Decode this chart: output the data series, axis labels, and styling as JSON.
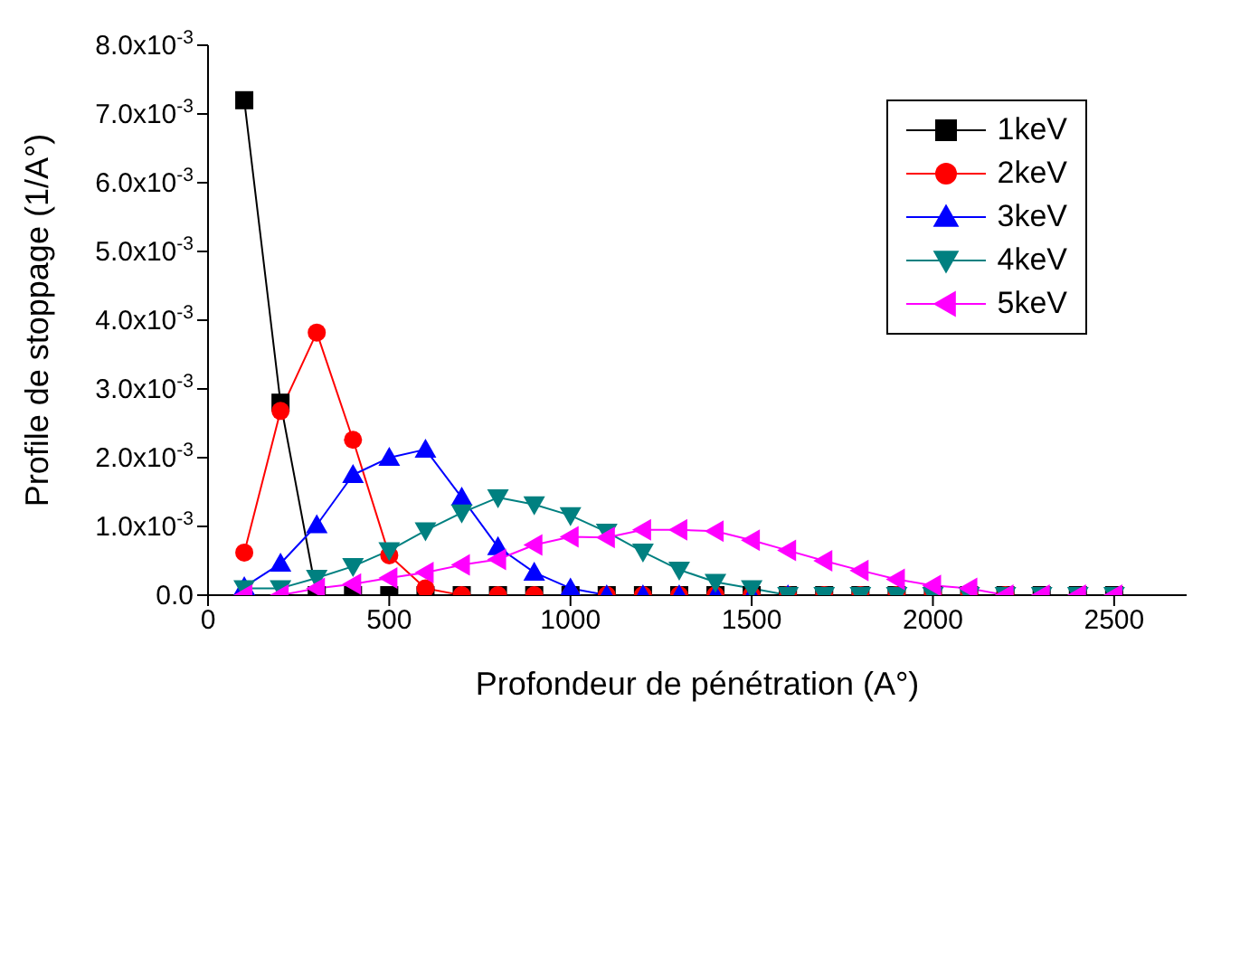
{
  "chart_data": {
    "type": "line",
    "xlabel": "Profondeur de pénétration (A°)",
    "ylabel": "Profile de stoppage (1/A°)",
    "x": [
      100,
      200,
      300,
      400,
      500,
      600,
      700,
      800,
      900,
      1000,
      1100,
      1200,
      1300,
      1400,
      1500,
      1600,
      1700,
      1800,
      1900,
      2000,
      2100,
      2200,
      2300,
      2400,
      2500
    ],
    "series": [
      {
        "name": "1keV",
        "color": "#000000",
        "marker": "square",
        "values": [
          0.0072,
          0.0028,
          0,
          0,
          0,
          0,
          0,
          0,
          0,
          0,
          0,
          0,
          0,
          0,
          0,
          0,
          0,
          0,
          0,
          0,
          0,
          0,
          0,
          0,
          0
        ]
      },
      {
        "name": "2keV",
        "color": "#ff0000",
        "marker": "circle",
        "values": [
          0.00062,
          0.00268,
          0.00382,
          0.00226,
          0.00058,
          0.0001,
          0,
          0,
          0,
          0,
          0,
          0,
          0,
          0,
          0,
          0,
          0,
          0,
          0,
          0,
          0,
          0,
          null,
          null,
          null
        ]
      },
      {
        "name": "3keV",
        "color": "#0000ff",
        "marker": "triangle",
        "values": [
          0.00012,
          0.00046,
          0.00102,
          0.00175,
          0.002,
          0.00212,
          0.00142,
          0.0007,
          0.00033,
          0.0001,
          0,
          0,
          0,
          0,
          0,
          0,
          null,
          null,
          null,
          null,
          null,
          null,
          null,
          null,
          null
        ]
      },
      {
        "name": "4keV",
        "color": "#008080",
        "marker": "triangle-down",
        "values": [
          0.0001,
          0.0001,
          0.00025,
          0.00042,
          0.00065,
          0.00094,
          0.0012,
          0.00142,
          0.00132,
          0.00116,
          0.00092,
          0.00063,
          0.00037,
          0.00019,
          0.0001,
          0,
          0,
          0,
          0,
          0,
          0,
          0,
          0,
          0,
          0
        ]
      },
      {
        "name": "5keV",
        "color": "#ff00ff",
        "marker": "triangle-left",
        "values": [
          0,
          0,
          0.0001,
          0.00016,
          0.00025,
          0.00033,
          0.00044,
          0.00052,
          0.00073,
          0.00085,
          0.00084,
          0.00095,
          0.00095,
          0.00093,
          0.0008,
          0.00065,
          0.0005,
          0.00036,
          0.00023,
          0.00014,
          0.0001,
          0,
          0,
          0,
          0
        ]
      }
    ],
    "xlim": [
      0,
      2700
    ],
    "xticks": [
      0,
      500,
      1000,
      1500,
      2000,
      2500
    ],
    "ylim": [
      0,
      0.008
    ],
    "yticks": [
      {
        "value": 0,
        "label": "0.0"
      },
      {
        "value": 0.001,
        "label": "1.0x10$^{-3}$"
      },
      {
        "value": 0.002,
        "label": "2.0x10$^{-3}$"
      },
      {
        "value": 0.003,
        "label": "3.0x10$^{-3}$"
      },
      {
        "value": 0.004,
        "label": "4.0x10$^{-3}$"
      },
      {
        "value": 0.005,
        "label": "5.0x10$^{-3}$"
      },
      {
        "value": 0.006,
        "label": "6.0x10$^{-3}$"
      },
      {
        "value": 0.007,
        "label": "7.0x10$^{-3}$"
      },
      {
        "value": 0.008,
        "label": "8.0x10$^{-3}$"
      }
    ],
    "grid": false,
    "legend": "top right",
    "line_style": "solid"
  }
}
